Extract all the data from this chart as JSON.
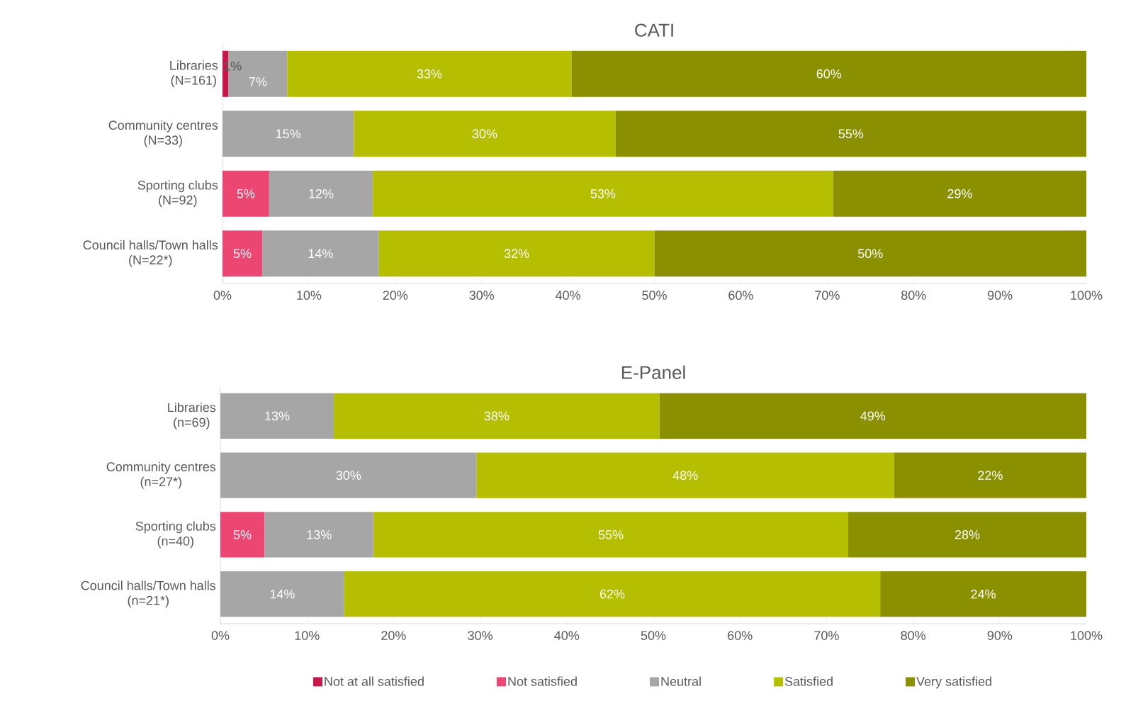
{
  "chart_data": [
    {
      "type": "bar",
      "orientation": "horizontal",
      "stacked": true,
      "title": "CATI",
      "categories": [
        "Libraries (N=161)",
        "Community centres (N=33)",
        "Sporting clubs (N=92)",
        "Council halls/Town halls (N=22*)"
      ],
      "xlim": [
        0,
        100
      ],
      "xticks": [
        {
          "value": 0,
          "label": "0%"
        },
        {
          "value": 10,
          "label": "10%"
        },
        {
          "value": 20,
          "label": "20%"
        },
        {
          "value": 30,
          "label": "30%"
        },
        {
          "value": 40,
          "label": "40%"
        },
        {
          "value": 50,
          "label": "50%"
        },
        {
          "value": 60,
          "label": "60%"
        },
        {
          "value": 70,
          "label": "70%"
        },
        {
          "value": 80,
          "label": "80%"
        },
        {
          "value": 90,
          "label": "90%"
        },
        {
          "value": 100,
          "label": "100%"
        }
      ],
      "series": [
        {
          "color": "#c8174a",
          "values": [
            0.7,
            null,
            null,
            null
          ],
          "value_labels": [
            "1%",
            null,
            null,
            null
          ]
        },
        {
          "color": "#ec4673",
          "values": [
            null,
            null,
            5.4,
            4.6
          ],
          "value_labels": [
            null,
            null,
            "5%",
            "5%"
          ]
        },
        {
          "color": "#a6a6a6",
          "values": [
            6.8,
            15.2,
            12.0,
            13.5
          ],
          "value_labels": [
            "7%",
            "15%",
            "12%",
            "14%"
          ]
        },
        {
          "color": "#b5bf00",
          "values": [
            32.9,
            30.3,
            53.3,
            31.9
          ],
          "value_labels": [
            "33%",
            "30%",
            "53%",
            "32%"
          ]
        },
        {
          "color": "#8a9000",
          "values": [
            59.6,
            54.5,
            29.3,
            50.0
          ],
          "value_labels": [
            "60%",
            "55%",
            "29%",
            "50%"
          ]
        }
      ]
    },
    {
      "type": "bar",
      "orientation": "horizontal",
      "stacked": true,
      "title": "E-Panel",
      "categories": [
        "Libraries (n=69)",
        "Community centres (n=27*)",
        "Sporting clubs (n=40)",
        "Council halls/Town halls (n=21*)"
      ],
      "xlim": [
        0,
        100
      ],
      "xticks": [
        {
          "value": 0,
          "label": "0%"
        },
        {
          "value": 10,
          "label": "10%"
        },
        {
          "value": 20,
          "label": "20%"
        },
        {
          "value": 30,
          "label": "30%"
        },
        {
          "value": 40,
          "label": "40%"
        },
        {
          "value": 50,
          "label": "50%"
        },
        {
          "value": 60,
          "label": "60%"
        },
        {
          "value": 70,
          "label": "70%"
        },
        {
          "value": 80,
          "label": "80%"
        },
        {
          "value": 90,
          "label": "90%"
        },
        {
          "value": 100,
          "label": "100%"
        }
      ],
      "legend": "bottom",
      "series": [
        {
          "name": "Not at all satisfied",
          "color": "#c8174a",
          "values": [
            null,
            null,
            null,
            null
          ],
          "value_labels": [
            null,
            null,
            null,
            null
          ]
        },
        {
          "name": "Not satisfied",
          "color": "#ec4673",
          "values": [
            null,
            null,
            5.1,
            null
          ],
          "value_labels": [
            null,
            null,
            "5%",
            null
          ]
        },
        {
          "name": "Neutral",
          "color": "#a6a6a6",
          "values": [
            13.1,
            29.6,
            12.6,
            14.3
          ],
          "value_labels": [
            "13%",
            "30%",
            "13%",
            "14%"
          ]
        },
        {
          "name": "Satisfied",
          "color": "#b5bf00",
          "values": [
            37.6,
            48.2,
            54.8,
            61.9
          ],
          "value_labels": [
            "38%",
            "48%",
            "55%",
            "62%"
          ]
        },
        {
          "name": "Very satisfied",
          "color": "#8a9000",
          "values": [
            49.3,
            22.2,
            27.5,
            23.8
          ],
          "value_labels": [
            "49%",
            "22%",
            "28%",
            "24%"
          ]
        }
      ]
    }
  ]
}
